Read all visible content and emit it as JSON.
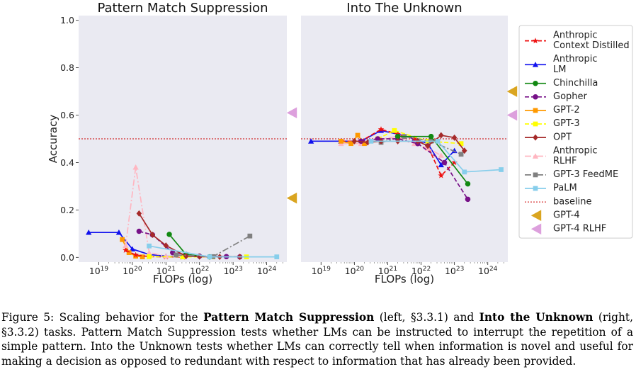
{
  "chart_data": [
    {
      "type": "line",
      "title": "Pattern Match Suppression",
      "xlabel": "FLOPs (log)",
      "ylabel": "Accuracy",
      "xscale": "log10",
      "xlim": [
        18.4,
        24.6
      ],
      "ylim": [
        -0.02,
        1.02
      ],
      "x_ticks": [
        19,
        20,
        21,
        22,
        23,
        24
      ],
      "y_ticks": [
        0.0,
        0.2,
        0.4,
        0.6,
        0.8,
        1.0
      ],
      "baseline": 0.5,
      "gpt4_markers": [
        {
          "name": "GPT-4",
          "value": 0.25
        },
        {
          "name": "GPT-4 RLHF",
          "value": 0.61
        }
      ],
      "series": [
        {
          "name": "Anthropic LM",
          "log10_x": [
            18.7,
            19.6,
            20.0,
            20.5,
            21.0,
            21.5
          ],
          "y": [
            0.105,
            0.105,
            0.035,
            0.012,
            0.005,
            0.003
          ]
        },
        {
          "name": "GPT-2",
          "log10_x": [
            19.7,
            19.9,
            20.1,
            20.3
          ],
          "y": [
            0.075,
            0.02,
            0.005,
            0.002
          ]
        },
        {
          "name": "Anthropic Context Distilled",
          "log10_x": [
            19.8,
            20.1,
            20.5,
            21.0,
            21.5
          ],
          "y": [
            0.03,
            0.01,
            0.003,
            0.002,
            0.001
          ]
        },
        {
          "name": "Anthropic RLHF",
          "log10_x": [
            19.8,
            20.1,
            20.5,
            21.0,
            21.5
          ],
          "y": [
            0.05,
            0.38,
            0.02,
            0.005,
            0.003
          ]
        },
        {
          "name": "GPT-3",
          "log10_x": [
            20.5,
            21.5,
            22.4,
            23.4
          ],
          "y": [
            0.003,
            0.002,
            0.002,
            0.002
          ]
        },
        {
          "name": "Gopher",
          "log10_x": [
            20.2,
            20.6,
            21.2,
            22.0,
            22.8,
            23.2
          ],
          "y": [
            0.11,
            0.095,
            0.02,
            0.005,
            0.003,
            0.002
          ]
        },
        {
          "name": "Chinchilla",
          "log10_x": [
            21.1,
            21.6,
            22.3
          ],
          "y": [
            0.097,
            0.012,
            0.002
          ]
        },
        {
          "name": "OPT",
          "log10_x": [
            20.2,
            20.6,
            21.0,
            21.6,
            22.0,
            22.6,
            23.2
          ],
          "y": [
            0.185,
            0.095,
            0.05,
            0.005,
            0.003,
            0.002,
            0.002
          ]
        },
        {
          "name": "GPT-3 FeedME",
          "log10_x": [
            21.3,
            22.4,
            23.5
          ],
          "y": [
            0.01,
            0.003,
            0.09
          ]
        },
        {
          "name": "PaLM",
          "log10_x": [
            20.5,
            22.3,
            24.3
          ],
          "y": [
            0.048,
            0.002,
            0.002
          ]
        }
      ]
    },
    {
      "type": "line",
      "title": "Into The Unknown",
      "xlabel": "FLOPs (log)",
      "ylabel": "",
      "xscale": "log10",
      "xlim": [
        18.4,
        24.6
      ],
      "ylim": [
        -0.02,
        1.02
      ],
      "x_ticks": [
        19,
        20,
        21,
        22,
        23,
        24
      ],
      "y_ticks": [],
      "baseline": 0.5,
      "gpt4_markers": [
        {
          "name": "GPT-4",
          "value": 0.7
        },
        {
          "name": "GPT-4 RLHF",
          "value": 0.6
        }
      ],
      "series": [
        {
          "name": "Anthropic LM",
          "log10_x": [
            18.7,
            19.6,
            20.2,
            20.8,
            21.3,
            21.8,
            22.2,
            22.6,
            23.0
          ],
          "y": [
            0.49,
            0.49,
            0.49,
            0.535,
            0.52,
            0.5,
            0.48,
            0.39,
            0.45
          ]
        },
        {
          "name": "Anthropic Context Distilled",
          "log10_x": [
            19.6,
            20.2,
            20.8,
            21.3,
            21.8,
            22.2,
            22.6,
            23.0
          ],
          "y": [
            0.49,
            0.49,
            0.54,
            0.52,
            0.5,
            0.47,
            0.345,
            0.4
          ]
        },
        {
          "name": "Anthropic RLHF",
          "log10_x": [
            19.6,
            20.2,
            20.8,
            21.3,
            21.8,
            22.2,
            22.6
          ],
          "y": [
            0.48,
            0.48,
            0.5,
            0.51,
            0.48,
            0.46,
            0.43
          ]
        },
        {
          "name": "GPT-2",
          "log10_x": [
            19.6,
            19.9,
            20.1,
            20.3
          ],
          "y": [
            0.49,
            0.48,
            0.515,
            0.48
          ]
        },
        {
          "name": "GPT-3",
          "log10_x": [
            20.7,
            21.2,
            22.2,
            23.2
          ],
          "y": [
            0.5,
            0.535,
            0.49,
            0.48
          ]
        },
        {
          "name": "GPT-3 FeedME",
          "log10_x": [
            20.8,
            21.5,
            22.3,
            23.2
          ],
          "y": [
            0.485,
            0.51,
            0.49,
            0.435
          ]
        },
        {
          "name": "Gopher",
          "log10_x": [
            20.2,
            20.7,
            21.3,
            21.9,
            22.7,
            23.4
          ],
          "y": [
            0.49,
            0.5,
            0.5,
            0.48,
            0.4,
            0.245
          ]
        },
        {
          "name": "Chinchilla",
          "log10_x": [
            21.3,
            22.3,
            23.4
          ],
          "y": [
            0.51,
            0.51,
            0.31
          ]
        },
        {
          "name": "OPT",
          "log10_x": [
            20.0,
            20.4,
            20.8,
            21.3,
            21.9,
            22.2,
            22.6,
            23.0,
            23.3
          ],
          "y": [
            0.49,
            0.485,
            0.49,
            0.49,
            0.49,
            0.47,
            0.515,
            0.505,
            0.45
          ]
        },
        {
          "name": "PaLM",
          "log10_x": [
            20.5,
            22.5,
            23.3,
            24.4
          ],
          "y": [
            0.49,
            0.49,
            0.36,
            0.37
          ]
        }
      ]
    }
  ],
  "legend": {
    "items": [
      {
        "name": "Anthropic Context Distilled",
        "lines": [
          "Anthropic",
          "Context Distilled"
        ],
        "color": "#ee1111",
        "marker": "star",
        "dash": "6 3"
      },
      {
        "name": "Anthropic LM",
        "lines": [
          "Anthropic",
          "LM"
        ],
        "color": "#1111ee",
        "marker": "triangle",
        "dash": ""
      },
      {
        "name": "Chinchilla",
        "lines": [
          "Chinchilla"
        ],
        "color": "#118811",
        "marker": "circle",
        "dash": ""
      },
      {
        "name": "Gopher",
        "lines": [
          "Gopher"
        ],
        "color": "#771188",
        "marker": "circle",
        "dash": "6 3"
      },
      {
        "name": "GPT-2",
        "lines": [
          "GPT-2"
        ],
        "color": "#ff9900",
        "marker": "square",
        "dash": ""
      },
      {
        "name": "GPT-3",
        "lines": [
          "GPT-3"
        ],
        "color": "#ffff00",
        "marker": "square",
        "dash": "6 3"
      },
      {
        "name": "OPT",
        "lines": [
          "OPT"
        ],
        "color": "#a52a2a",
        "marker": "diamond",
        "dash": ""
      },
      {
        "name": "Anthropic RLHF",
        "lines": [
          "Anthropic",
          "RLHF"
        ],
        "color": "#ffb6c1",
        "marker": "triangle",
        "dash": "9 3 2 3"
      },
      {
        "name": "GPT-3 FeedME",
        "lines": [
          "GPT-3 FeedME"
        ],
        "color": "#808080",
        "marker": "square",
        "dash": "9 3 2 3"
      },
      {
        "name": "PaLM",
        "lines": [
          "PaLM"
        ],
        "color": "#87ceeb",
        "marker": "square",
        "dash": ""
      },
      {
        "name": "baseline",
        "lines": [
          "baseline"
        ],
        "color": "#cc0000",
        "marker": "none",
        "dash": "2 2"
      },
      {
        "name": "GPT-4",
        "lines": [
          "GPT-4"
        ],
        "color": "#daa520",
        "marker": "tri-left",
        "dash": ""
      },
      {
        "name": "GPT-4 RLHF",
        "lines": [
          "GPT-4 RLHF"
        ],
        "color": "#dda0dd",
        "marker": "tri-left",
        "dash": ""
      }
    ]
  },
  "caption": {
    "t1": "Figure 5: Scaling behavior for the ",
    "b1": "Pattern Match Suppression",
    "t2": " (left, §3.3.1) and ",
    "b2": "Into the Unknown",
    "t3": " (right, §3.3.2) tasks.  Pattern Match Suppression tests whether LMs can be instructed to interrupt the repetition of a simple pattern. Into the Unknown tests whether LMs can correctly tell when information is novel and useful for making a decision as opposed to redundant with respect to information that has already been provided."
  }
}
